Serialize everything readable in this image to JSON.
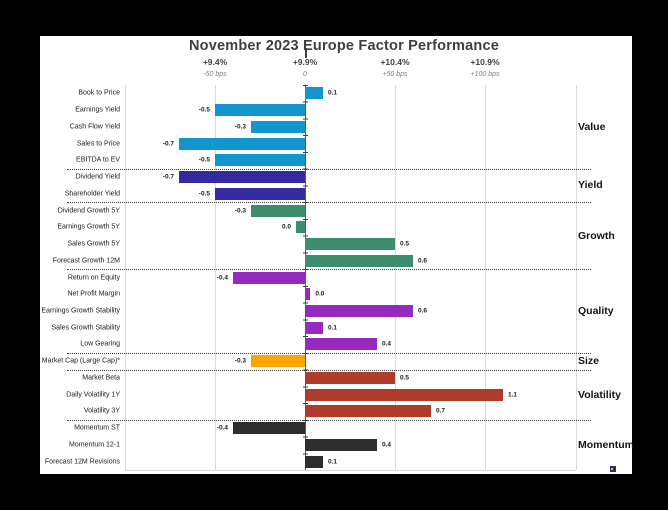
{
  "title": "November 2023 Europe Factor Performance",
  "chart_data": {
    "type": "bar",
    "orientation": "horizontal",
    "title": "November 2023 Europe Factor Performance",
    "value_unit": "percent (1.0 = 100 bps)",
    "xlim": [
      -0.78,
      1.27
    ],
    "grid": true,
    "axis_top": {
      "ticks": [
        {
          "value": -0.5,
          "primary": "+9.4%",
          "secondary": "-50 bps"
        },
        {
          "value": 0.0,
          "primary": "+9.9%",
          "secondary": "0"
        },
        {
          "value": 0.5,
          "primary": "+10.4%",
          "secondary": "+50 bps"
        },
        {
          "value": 1.0,
          "primary": "+10.9%",
          "secondary": "+100 bps"
        }
      ]
    },
    "groups": [
      {
        "name": "Value",
        "color": "#1395CE",
        "factors": [
          {
            "label": "Book to Price",
            "value": 0.1,
            "display": "0.1"
          },
          {
            "label": "Earnings Yield",
            "value": -0.5,
            "display": "-0.5"
          },
          {
            "label": "Cash Flow Yield",
            "value": -0.3,
            "display": "-0.3"
          },
          {
            "label": "Sales to Price",
            "value": -0.7,
            "display": "-0.7"
          },
          {
            "label": "EBITDA to EV",
            "value": -0.5,
            "display": "-0.5"
          }
        ]
      },
      {
        "name": "Yield",
        "color": "#34299E",
        "factors": [
          {
            "label": "Dividend Yield",
            "value": -0.7,
            "display": "-0.7"
          },
          {
            "label": "Shareholder Yield",
            "value": -0.5,
            "display": "-0.5"
          }
        ]
      },
      {
        "name": "Growth",
        "color": "#3E8E6E",
        "factors": [
          {
            "label": "Dividend Growth 5Y",
            "value": -0.3,
            "display": "-0.3"
          },
          {
            "label": "Earnings Growth 5Y",
            "value": 0.0,
            "display": "0.0",
            "bar_value": -0.05
          },
          {
            "label": "Sales Growth 5Y",
            "value": 0.5,
            "display": "0.5"
          },
          {
            "label": "Forecast Growth 12M",
            "value": 0.6,
            "display": "0.6"
          }
        ]
      },
      {
        "name": "Quality",
        "color": "#9729BF",
        "factors": [
          {
            "label": "Return on Equity",
            "value": -0.4,
            "display": "-0.4"
          },
          {
            "label": "Net Profit Margin",
            "value": 0.0,
            "display": "0.0",
            "bar_value": 0.03
          },
          {
            "label": "Earnings Growth Stability",
            "value": 0.6,
            "display": "0.6"
          },
          {
            "label": "Sales Growth Stability",
            "value": 0.1,
            "display": "0.1"
          },
          {
            "label": "Low Gearing",
            "value": 0.4,
            "display": "0.4"
          }
        ]
      },
      {
        "name": "Size",
        "color": "#F9A603",
        "factors": [
          {
            "label": "Market Cap (Large Cap)*",
            "value": -0.3,
            "display": "-0.3"
          }
        ]
      },
      {
        "name": "Volatility",
        "color": "#AE3B2C",
        "factors": [
          {
            "label": "Market Beta",
            "value": 0.5,
            "display": "0.5"
          },
          {
            "label": "Daily Volatility 1Y",
            "value": 1.1,
            "display": "1.1"
          },
          {
            "label": "Volatility 3Y",
            "value": 0.7,
            "display": "0.7"
          }
        ]
      },
      {
        "name": "Momentum",
        "color": "#2D2D2D",
        "factors": [
          {
            "label": "Momentum ST",
            "value": -0.4,
            "display": "-0.4"
          },
          {
            "label": "Momentum 12-1",
            "value": 0.4,
            "display": "0.4"
          },
          {
            "label": "Forecast 12M Revisions",
            "value": 0.1,
            "display": "0.1"
          }
        ]
      }
    ]
  },
  "corner_mark": {
    "icon": "cropped-logo-fragment"
  }
}
